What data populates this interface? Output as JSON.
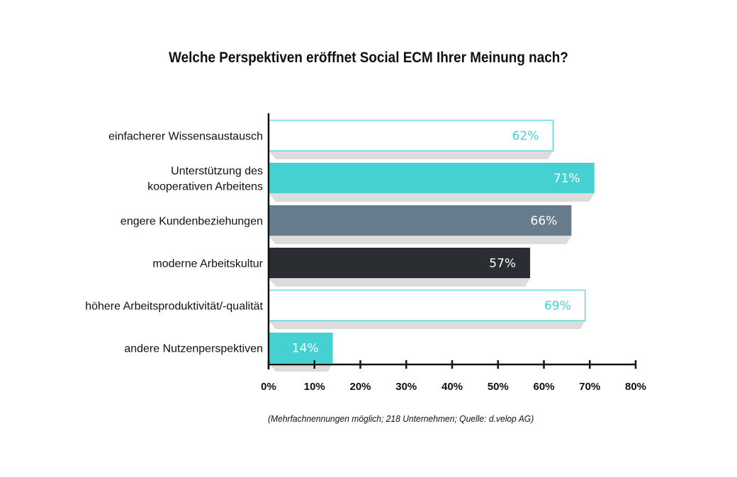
{
  "title": "Welche Perspektiven eröffnet Social ECM Ihrer Meinung nach?",
  "footnote": "(Mehrfachnennungen möglich; 218 Unternehmen; Quelle: d.velop AG)",
  "colors": {
    "turquoise": "#45d1d1",
    "slate": "#677d8e",
    "dark": "#2a2d31",
    "outline": "#45d1d1",
    "shadow": "#dcdcdc",
    "axis": "#111111"
  },
  "chart_data": {
    "type": "bar",
    "orientation": "horizontal",
    "title": "Welche Perspektiven eröffnet Social ECM Ihrer Meinung nach?",
    "categories": [
      "einfacherer Wissensaustausch",
      "Unterstützung des kooperativen Arbeitens",
      "engere Kundenbeziehungen",
      "moderne Arbeitskultur",
      "höhere Arbeitsproduktivität/-qualität",
      "andere Nutzenperspektiven"
    ],
    "category_lines": [
      [
        "einfacherer Wissensaustausch"
      ],
      [
        "Unterstützung des",
        "kooperativen Arbeitens"
      ],
      [
        "engere Kundenbeziehungen"
      ],
      [
        "moderne Arbeitskultur"
      ],
      [
        "höhere Arbeitsproduktivität/-qualität"
      ],
      [
        "andere Nutzenperspektiven"
      ]
    ],
    "values": [
      62,
      71,
      66,
      57,
      69,
      14
    ],
    "value_labels": [
      "62%",
      "71%",
      "66%",
      "57%",
      "69%",
      "14%"
    ],
    "bar_styles": [
      "outline",
      "turquoise",
      "slate",
      "dark",
      "outline",
      "turquoise"
    ],
    "xlim": [
      0,
      80
    ],
    "ticks": [
      0,
      10,
      20,
      30,
      40,
      50,
      60,
      70,
      80
    ],
    "tick_labels": [
      "0%",
      "10%",
      "20%",
      "30%",
      "40%",
      "50%",
      "60%",
      "70%",
      "80%"
    ],
    "xlabel": "",
    "ylabel": "",
    "grid": false,
    "legend": "none"
  }
}
